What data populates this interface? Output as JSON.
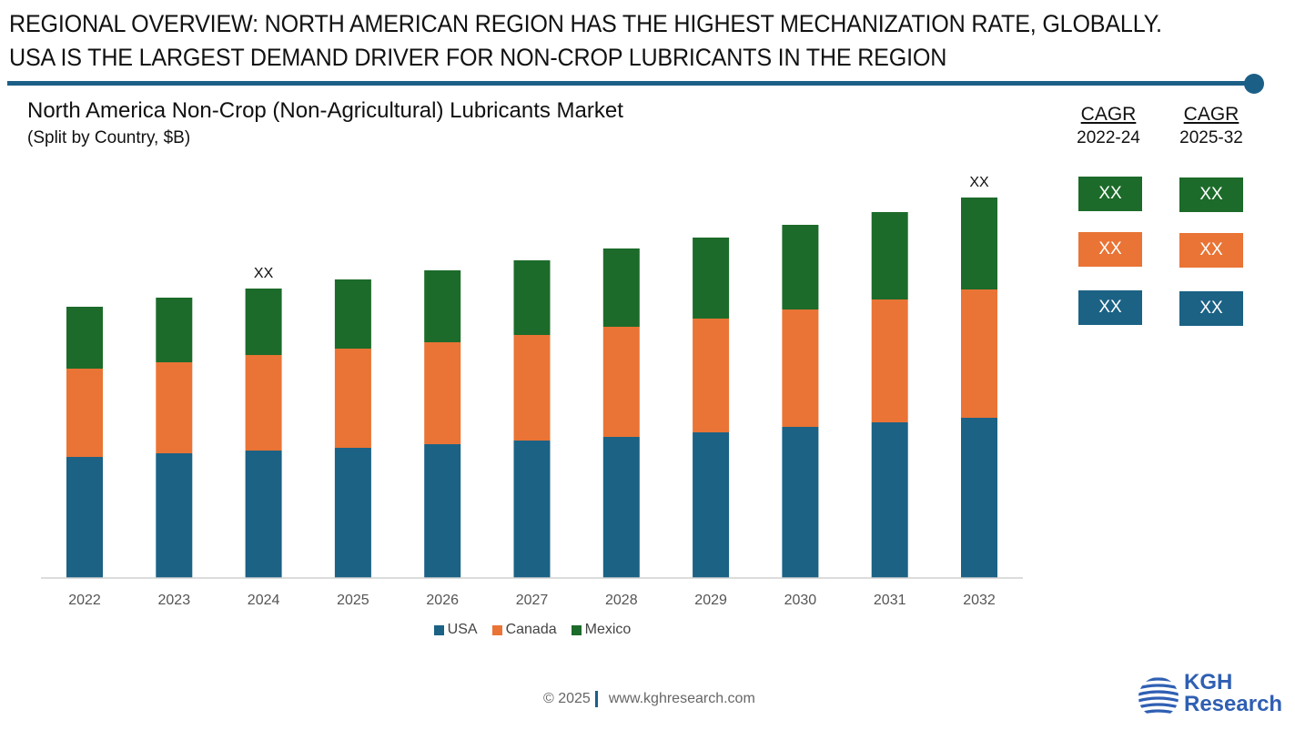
{
  "headline": {
    "line1": "REGIONAL OVERVIEW: NORTH AMERICAN REGION HAS THE HIGHEST MECHANIZATION RATE, GLOBALLY.",
    "line2": "USA IS THE LARGEST DEMAND DRIVER FOR NON-CROP LUBRICANTS IN THE REGION"
  },
  "colors": {
    "accent": "#1c5f86",
    "usa": "#1b6285",
    "canada": "#e97435",
    "mexico": "#1c6b2a"
  },
  "chart_data": {
    "type": "bar",
    "stacked": true,
    "title": "North America Non-Crop (Non-Agricultural) Lubricants Market",
    "subtitle": "(Split by Country, $B)",
    "xlabel": "",
    "ylabel": "",
    "y_axis_shown": false,
    "values_note": "no y-axis scale shown; values are relative magnitudes estimated from bar heights",
    "ylim": [
      0,
      420
    ],
    "grid": false,
    "legend_position": "bottom-center",
    "categories": [
      "2022",
      "2023",
      "2024",
      "2025",
      "2026",
      "2027",
      "2028",
      "2029",
      "2030",
      "2031",
      "2032"
    ],
    "series": [
      {
        "name": "USA",
        "color": "#1b6285",
        "values": [
          133,
          137,
          140,
          143,
          147,
          151,
          155,
          160,
          166,
          171,
          176
        ]
      },
      {
        "name": "Canada",
        "color": "#e97435",
        "values": [
          97,
          100,
          105,
          109,
          112,
          116,
          121,
          125,
          129,
          135,
          141
        ]
      },
      {
        "name": "Mexico",
        "color": "#1c6b2a",
        "values": [
          68,
          71,
          73,
          76,
          79,
          82,
          86,
          89,
          93,
          96,
          101
        ]
      }
    ],
    "annotations": [
      {
        "category": "2024",
        "text": "XX"
      },
      {
        "category": "2032",
        "text": "XX"
      }
    ]
  },
  "cagr": {
    "columns": [
      {
        "label": "CAGR",
        "period": "2022-24",
        "values": [
          "XX",
          "XX",
          "XX"
        ]
      },
      {
        "label": "CAGR",
        "period": "2025-32",
        "values": [
          "XX",
          "XX",
          "XX"
        ]
      }
    ]
  },
  "footer": {
    "copyright": "© 2025",
    "website": "www.kghresearch.com"
  },
  "logo": {
    "line1": "KGH",
    "line2": "Research"
  }
}
